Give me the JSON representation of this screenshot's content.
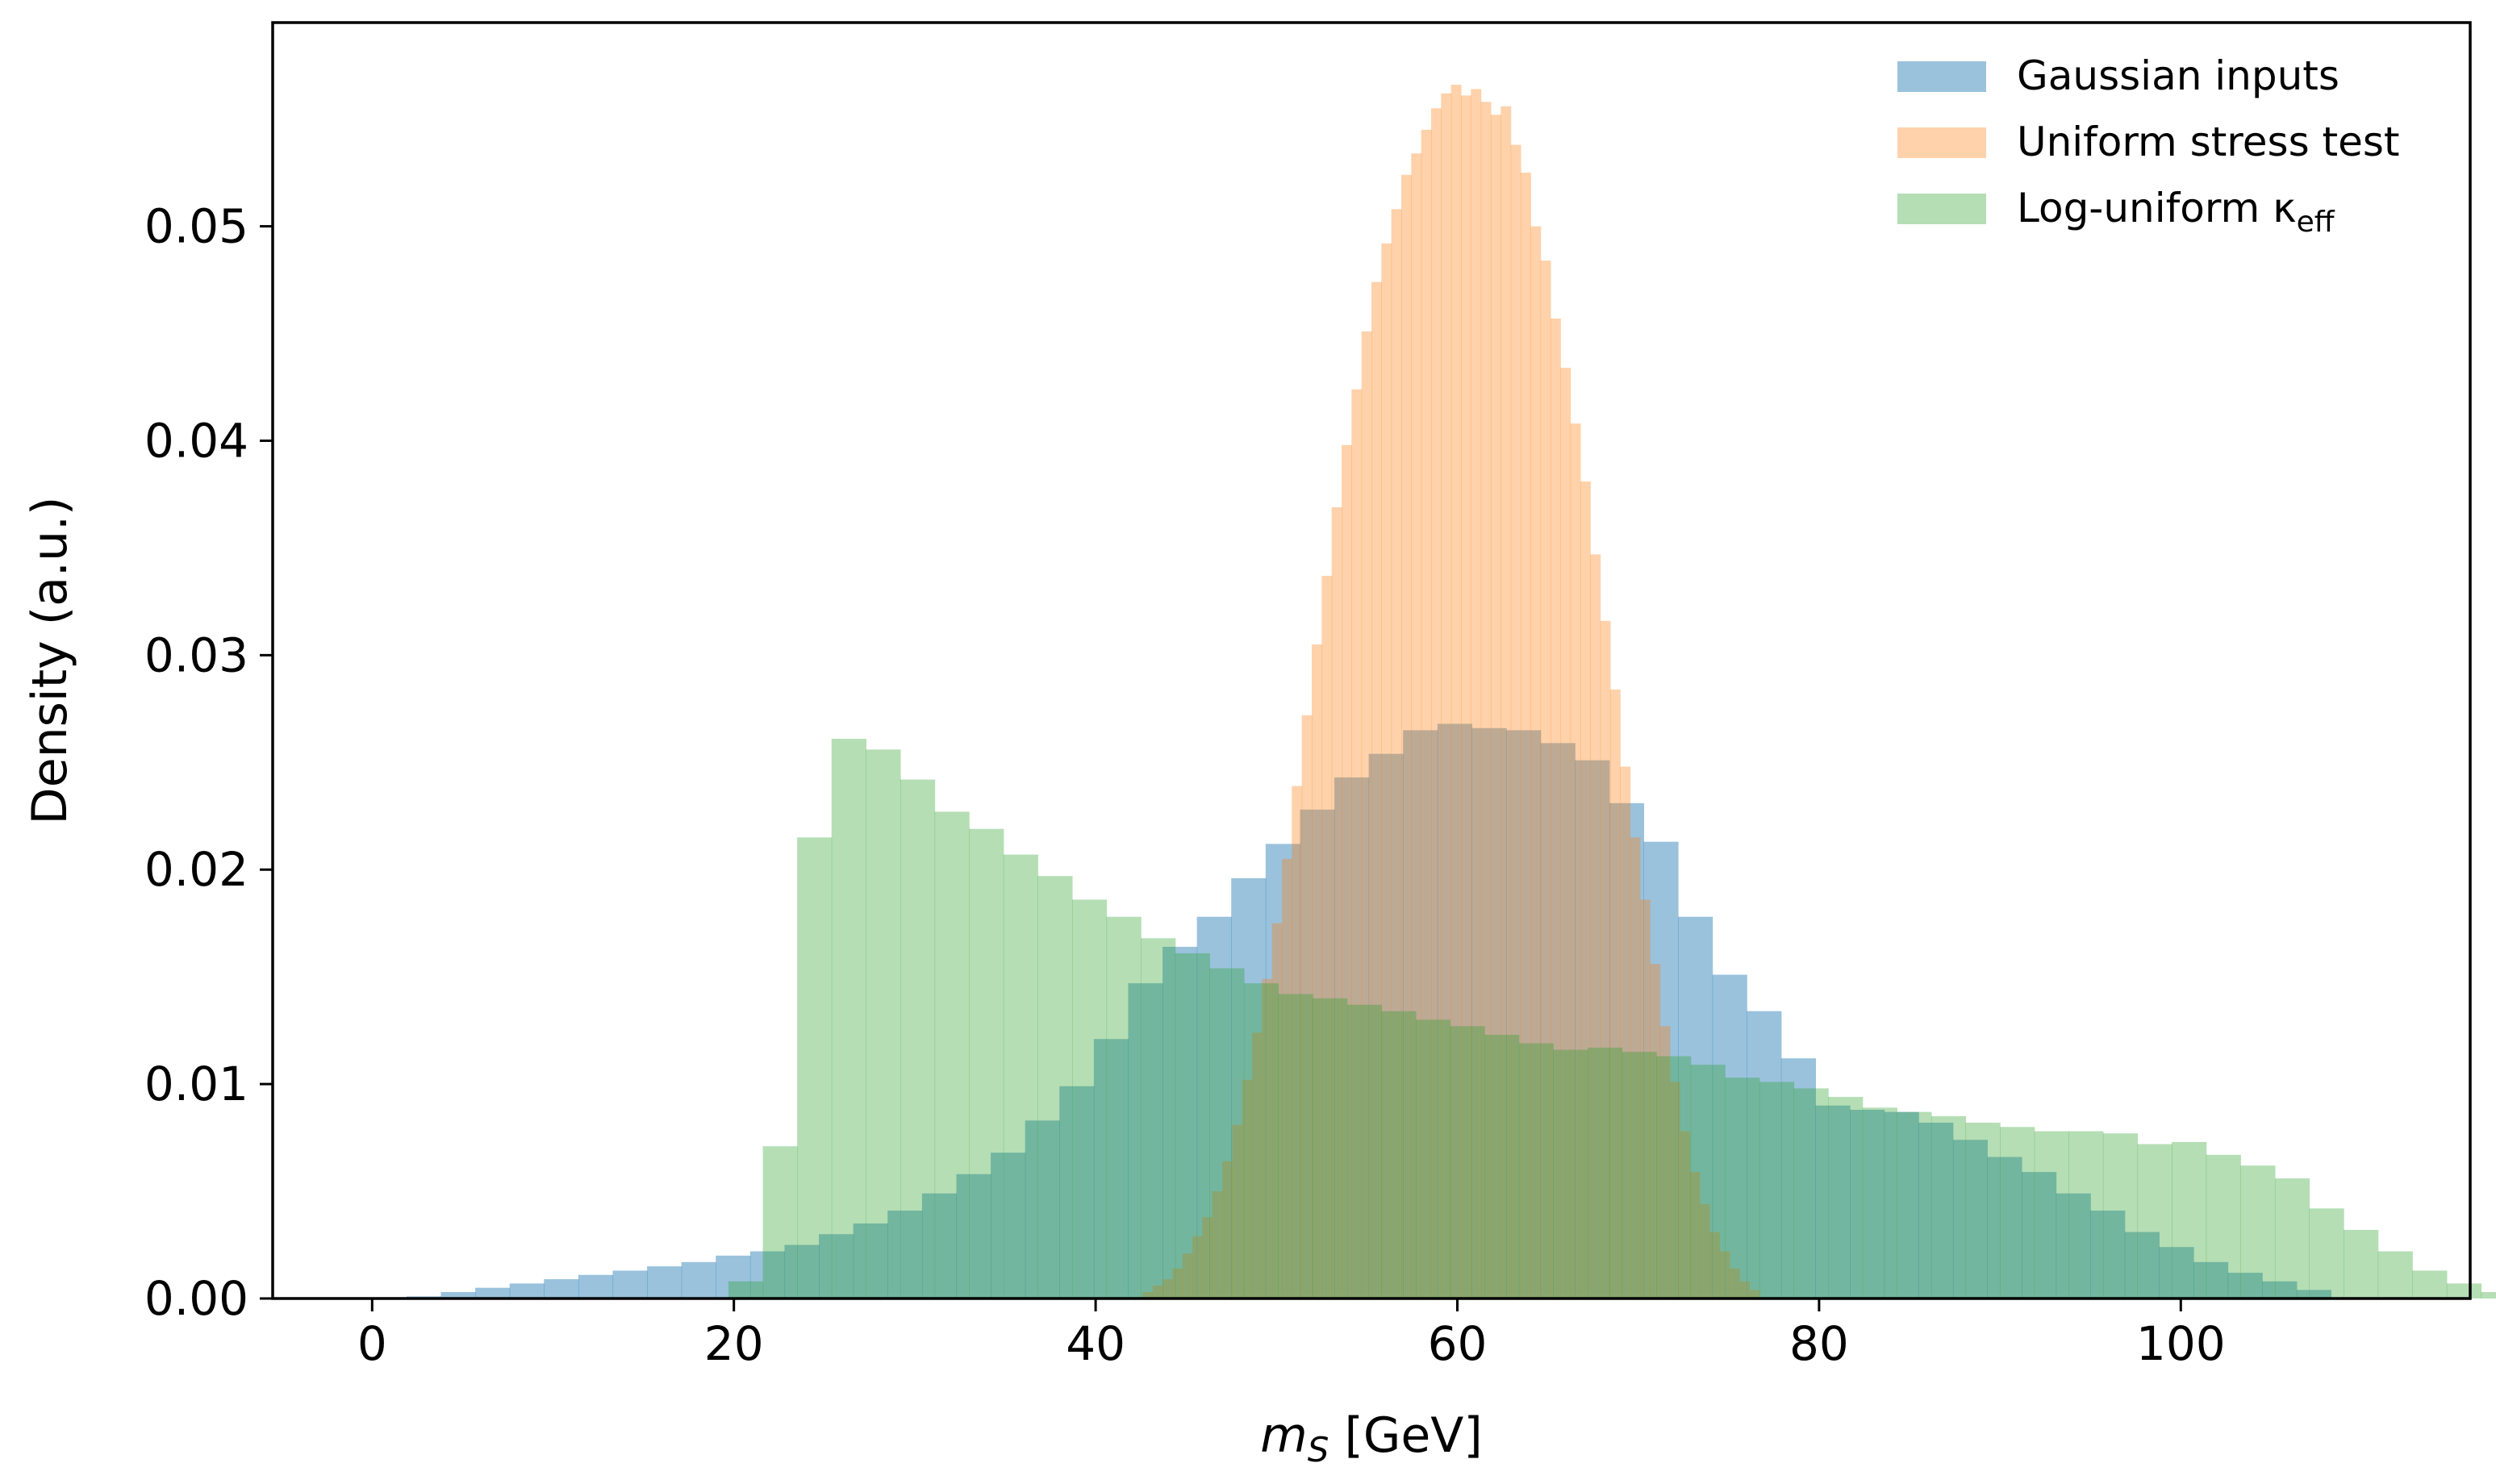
{
  "chart_data": {
    "type": "bar",
    "subtype": "overlapping-histogram",
    "title": "",
    "xlabel_main": "m",
    "xlabel_sub": "S",
    "xlabel_unit": " [GeV]",
    "ylabel": "Density (a.u.)",
    "xlim": [
      -5.5,
      116
    ],
    "ylim": [
      0,
      0.0595
    ],
    "xticks": [
      0,
      20,
      40,
      60,
      80,
      100
    ],
    "xtick_labels": [
      "0",
      "20",
      "40",
      "60",
      "80",
      "100"
    ],
    "yticks": [
      0,
      0.01,
      0.02,
      0.03,
      0.04,
      0.05
    ],
    "ytick_labels": [
      "0.00",
      "0.01",
      "0.02",
      "0.03",
      "0.04",
      "0.05"
    ],
    "grid": false,
    "legend_position": "top-right",
    "series": [
      {
        "name": "Gaussian inputs",
        "legend_main": "Gaussian inputs",
        "color": "#1f77b4",
        "alpha": 0.45,
        "bin_start": 0,
        "bin_width": 1.9,
        "values": [
          0.0,
          0.0001,
          0.0003,
          0.0005,
          0.0007,
          0.0009,
          0.0011,
          0.0013,
          0.0015,
          0.0017,
          0.002,
          0.0022,
          0.0025,
          0.003,
          0.0035,
          0.0041,
          0.0049,
          0.0058,
          0.0068,
          0.0083,
          0.0099,
          0.0121,
          0.0147,
          0.0164,
          0.0178,
          0.0196,
          0.0212,
          0.0228,
          0.0243,
          0.0254,
          0.0265,
          0.0268,
          0.0266,
          0.0265,
          0.0259,
          0.0251,
          0.0231,
          0.0213,
          0.0178,
          0.0151,
          0.0134,
          0.0112,
          0.009,
          0.0088,
          0.0087,
          0.0082,
          0.0074,
          0.0066,
          0.0059,
          0.0049,
          0.0041,
          0.0031,
          0.0024,
          0.0017,
          0.0012,
          0.0008,
          0.0004
        ]
      },
      {
        "name": "Uniform stress test",
        "legend_main": "Uniform stress test",
        "color": "#ff7f0e",
        "alpha": 0.35,
        "bin_start": 42.6,
        "bin_width": 0.55,
        "values": [
          0.0003,
          0.0006,
          0.0009,
          0.0014,
          0.0021,
          0.0029,
          0.0038,
          0.005,
          0.0064,
          0.0081,
          0.0102,
          0.0124,
          0.0149,
          0.0175,
          0.0205,
          0.0239,
          0.0272,
          0.0305,
          0.0337,
          0.0369,
          0.0398,
          0.0424,
          0.0451,
          0.0474,
          0.0492,
          0.0508,
          0.0524,
          0.0534,
          0.0545,
          0.0555,
          0.0562,
          0.0566,
          0.0561,
          0.0564,
          0.0558,
          0.0552,
          0.0556,
          0.0538,
          0.0525,
          0.05,
          0.0484,
          0.0457,
          0.0434,
          0.0408,
          0.0381,
          0.0347,
          0.0316,
          0.0284,
          0.0248,
          0.0215,
          0.0186,
          0.0156,
          0.0127,
          0.0101,
          0.0078,
          0.0059,
          0.0044,
          0.0031,
          0.0022,
          0.0014,
          0.0008,
          0.0004
        ]
      },
      {
        "name": "Log-uniform κeff",
        "legend_main": "Log-uniform κ",
        "legend_sub": "eff",
        "color": "#2ca02c",
        "alpha": 0.35,
        "bin_start": 19.7,
        "bin_width": 1.9,
        "values": [
          0.0008,
          0.0071,
          0.0215,
          0.0261,
          0.0256,
          0.0242,
          0.0227,
          0.0219,
          0.0207,
          0.0197,
          0.0186,
          0.0178,
          0.0168,
          0.0161,
          0.0154,
          0.0147,
          0.0142,
          0.014,
          0.0137,
          0.0134,
          0.013,
          0.0127,
          0.0123,
          0.0119,
          0.0116,
          0.0117,
          0.0115,
          0.0113,
          0.0109,
          0.0103,
          0.0101,
          0.0098,
          0.0094,
          0.0089,
          0.0087,
          0.0085,
          0.0082,
          0.008,
          0.0078,
          0.0078,
          0.0077,
          0.0072,
          0.0073,
          0.0067,
          0.0062,
          0.0056,
          0.0042,
          0.0032,
          0.0022,
          0.0013,
          0.0007,
          0.0003
        ]
      }
    ]
  }
}
